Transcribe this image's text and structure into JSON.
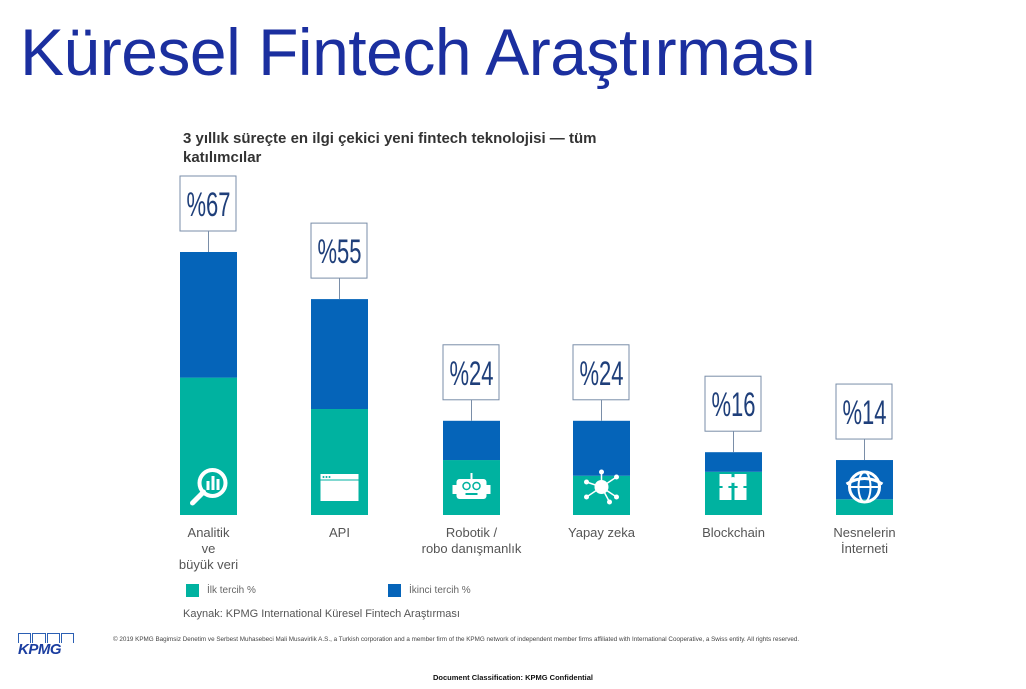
{
  "header": {
    "title": "Küresel Fintech Araştırması"
  },
  "chart_data": {
    "type": "bar",
    "stacked": true,
    "title": "3 yıllık süreçte en ilgi çekici yeni fintech teknolojisi — tüm katılımcılar",
    "categories": [
      "Analitik ve büyük veri",
      "API",
      "Robotik / robo danışmanlık",
      "Yapay zeka",
      "Blockchain",
      "Nesnelerin İnterneti"
    ],
    "category_lines": [
      [
        "Analitik",
        "ve",
        "büyük veri"
      ],
      [
        "API"
      ],
      [
        "Robotik /",
        "robo danışmanlık"
      ],
      [
        "Yapay zeka"
      ],
      [
        "Blockchain"
      ],
      [
        "Nesnelerin",
        "İnterneti"
      ]
    ],
    "totals": [
      67,
      55,
      24,
      24,
      16,
      14
    ],
    "total_labels": [
      "%67",
      "%55",
      "%24",
      "%24",
      "%16",
      "%14"
    ],
    "icons": [
      "magnifier-chart-icon",
      "browser-window-icon",
      "robot-icon",
      "network-node-icon",
      "puzzle-icon",
      "globe-icon"
    ],
    "series": [
      {
        "name": "İlk tercih %",
        "color": "#00b2a0",
        "values": [
          35,
          27,
          14,
          10,
          11,
          4
        ]
      },
      {
        "name": "İkinci tercih %",
        "color": "#0564b9",
        "values": [
          32,
          28,
          10,
          14,
          5,
          10
        ]
      }
    ],
    "ylim": [
      0,
      67
    ],
    "grid": false,
    "legend_position": "bottom-left"
  },
  "source": "Kaynak: KPMG International Küresel Fintech Araştırması",
  "footer": {
    "logo": "KPMG",
    "copyright": "© 2019 KPMG Bagimsiz Denetim ve Serbest Muhasebeci Mali Musavirlik A.S., a Turkish corporation and a member firm of the KPMG network of independent member firms affiliated with International Cooperative, a Swiss entity. All rights reserved.",
    "classification": "Document Classification: KPMG Confidential"
  }
}
